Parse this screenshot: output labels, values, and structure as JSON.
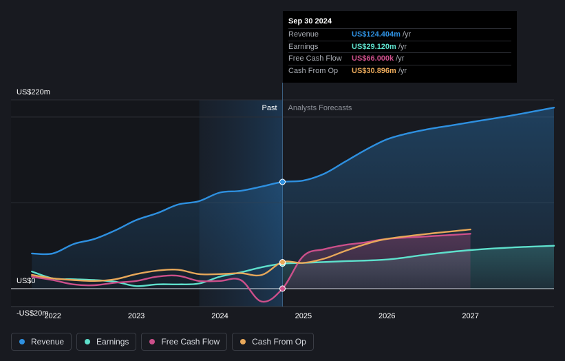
{
  "chart_data": {
    "type": "line",
    "title": "",
    "xlabel": "",
    "ylabel": "",
    "ylim": [
      -20,
      220
    ],
    "xlim": [
      2021.5,
      2028.0
    ],
    "y_axis_labels": [
      {
        "label": "US$220m",
        "value": 220
      },
      {
        "label": "US$0",
        "value": 0
      },
      {
        "label": "-US$20m",
        "value": -20
      }
    ],
    "x_ticks": [
      {
        "label": "2022",
        "value": 2022
      },
      {
        "label": "2023",
        "value": 2023
      },
      {
        "label": "2024",
        "value": 2024
      },
      {
        "label": "2025",
        "value": 2025
      },
      {
        "label": "2026",
        "value": 2026
      },
      {
        "label": "2027",
        "value": 2027
      }
    ],
    "divider_x": 2024.75,
    "past_shade_start": 2023.75,
    "past_label": "Past",
    "forecast_label": "Analysts Forecasts",
    "series": [
      {
        "name": "Revenue",
        "key": "revenue",
        "color": "#2e90e0",
        "past": [
          [
            2021.75,
            41
          ],
          [
            2022.0,
            41
          ],
          [
            2022.25,
            52
          ],
          [
            2022.5,
            58
          ],
          [
            2022.75,
            68
          ],
          [
            2023.0,
            80
          ],
          [
            2023.25,
            88
          ],
          [
            2023.5,
            98
          ],
          [
            2023.75,
            102
          ],
          [
            2024.0,
            112
          ],
          [
            2024.25,
            114
          ],
          [
            2024.5,
            119
          ],
          [
            2024.75,
            124.404
          ]
        ],
        "forecast": [
          [
            2024.75,
            124.404
          ],
          [
            2025.0,
            126
          ],
          [
            2025.25,
            134
          ],
          [
            2025.5,
            148
          ],
          [
            2025.75,
            162
          ],
          [
            2026.0,
            174
          ],
          [
            2026.25,
            181
          ],
          [
            2026.5,
            186
          ],
          [
            2026.75,
            190
          ],
          [
            2027.0,
            194
          ],
          [
            2027.5,
            202
          ],
          [
            2028.0,
            211
          ]
        ]
      },
      {
        "name": "Earnings",
        "key": "earnings",
        "color": "#5ee0cc",
        "past": [
          [
            2021.75,
            20
          ],
          [
            2022.0,
            12
          ],
          [
            2022.25,
            11
          ],
          [
            2022.5,
            10
          ],
          [
            2022.75,
            8
          ],
          [
            2023.0,
            3
          ],
          [
            2023.25,
            5
          ],
          [
            2023.5,
            5
          ],
          [
            2023.75,
            6
          ],
          [
            2024.0,
            14
          ],
          [
            2024.25,
            19
          ],
          [
            2024.5,
            25
          ],
          [
            2024.75,
            29.12
          ]
        ],
        "forecast": [
          [
            2024.75,
            29.12
          ],
          [
            2025.0,
            30
          ],
          [
            2025.5,
            32
          ],
          [
            2026.0,
            34
          ],
          [
            2026.5,
            40
          ],
          [
            2027.0,
            45
          ],
          [
            2027.5,
            48
          ],
          [
            2028.0,
            50
          ]
        ]
      },
      {
        "name": "Free Cash Flow",
        "key": "fcf",
        "color": "#cc4f8a",
        "past": [
          [
            2021.75,
            14
          ],
          [
            2022.0,
            10
          ],
          [
            2022.25,
            5
          ],
          [
            2022.5,
            4
          ],
          [
            2022.75,
            7
          ],
          [
            2023.0,
            9
          ],
          [
            2023.25,
            14
          ],
          [
            2023.5,
            15
          ],
          [
            2023.75,
            9
          ],
          [
            2024.0,
            9
          ],
          [
            2024.25,
            10
          ],
          [
            2024.5,
            -15
          ],
          [
            2024.75,
            0.066
          ]
        ],
        "forecast": [
          [
            2024.75,
            0.066
          ],
          [
            2025.0,
            38
          ],
          [
            2025.25,
            46
          ],
          [
            2025.5,
            51
          ],
          [
            2025.75,
            54
          ],
          [
            2026.0,
            58
          ],
          [
            2026.5,
            61
          ],
          [
            2027.0,
            64
          ]
        ]
      },
      {
        "name": "Cash From Op",
        "key": "cfo",
        "color": "#e8a85a",
        "past": [
          [
            2021.75,
            16
          ],
          [
            2022.0,
            12
          ],
          [
            2022.25,
            10
          ],
          [
            2022.5,
            9
          ],
          [
            2022.75,
            11
          ],
          [
            2023.0,
            17
          ],
          [
            2023.25,
            21
          ],
          [
            2023.5,
            22
          ],
          [
            2023.75,
            17
          ],
          [
            2024.0,
            17
          ],
          [
            2024.25,
            18
          ],
          [
            2024.5,
            16
          ],
          [
            2024.75,
            30.896
          ]
        ],
        "forecast": [
          [
            2024.75,
            30.896
          ],
          [
            2025.0,
            30
          ],
          [
            2025.25,
            35
          ],
          [
            2025.5,
            44
          ],
          [
            2025.75,
            52
          ],
          [
            2026.0,
            58
          ],
          [
            2026.5,
            64
          ],
          [
            2027.0,
            69
          ]
        ]
      }
    ]
  },
  "tooltip": {
    "date": "Sep 30 2024",
    "unit": "/yr",
    "rows": [
      {
        "label": "Revenue",
        "value": "US$124.404m",
        "color": "#2e90e0"
      },
      {
        "label": "Earnings",
        "value": "US$29.120m",
        "color": "#5ee0cc"
      },
      {
        "label": "Free Cash Flow",
        "value": "US$66.000k",
        "color": "#cc4f8a"
      },
      {
        "label": "Cash From Op",
        "value": "US$30.896m",
        "color": "#e8a85a"
      }
    ]
  },
  "legend": [
    {
      "label": "Revenue",
      "color": "#2e90e0"
    },
    {
      "label": "Earnings",
      "color": "#5ee0cc"
    },
    {
      "label": "Free Cash Flow",
      "color": "#cc4f8a"
    },
    {
      "label": "Cash From Op",
      "color": "#e8a85a"
    }
  ]
}
